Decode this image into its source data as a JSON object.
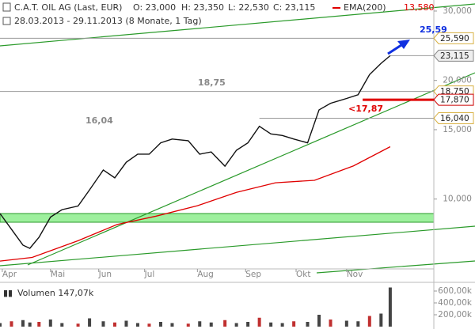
{
  "chart_data": {
    "type": "line",
    "title": "C.A.T. OIL AG (Last, EUR)",
    "ohlc": [
      "O: 23,000",
      "H: 23,350",
      "L: 22,530",
      "C: 23,115"
    ],
    "subtitle": "28.03.2013 - 29.11.2013 (8 Monate, 1 Tag)",
    "log": true,
    "xlim": [
      0,
      189
    ],
    "xticks": [
      {
        "value": 1,
        "label": "Apr"
      },
      {
        "value": 22,
        "label": "Mai"
      },
      {
        "value": 43,
        "label": "Jun"
      },
      {
        "value": 63,
        "label": "Jul"
      },
      {
        "value": 86,
        "label": "Aug"
      },
      {
        "value": 107,
        "label": "Sep"
      },
      {
        "value": 129,
        "label": "Okt"
      },
      {
        "value": 151,
        "label": "Nov"
      }
    ],
    "ylim": [
      6.65,
      32
    ],
    "yticks": [
      {
        "value": 10,
        "label": "10,000"
      },
      {
        "value": 15,
        "label": "15,000"
      },
      {
        "value": 20,
        "label": "20,000"
      },
      {
        "value": 30,
        "label": "30,000"
      }
    ],
    "series": [
      {
        "color": "#111111",
        "x": [
          0,
          5,
          10,
          13,
          17,
          22,
          27,
          34,
          39,
          45,
          50,
          55,
          60,
          65,
          70,
          75,
          82,
          87,
          92,
          98,
          103,
          108,
          113,
          118,
          123,
          128,
          134,
          139,
          144,
          151,
          156,
          161,
          166,
          170
        ],
        "values": [
          9.19,
          8.38,
          7.64,
          7.5,
          8.0,
          9.0,
          9.4,
          9.6,
          10.55,
          11.85,
          11.32,
          12.4,
          13.0,
          13.0,
          13.89,
          14.2,
          14.06,
          13.0,
          13.17,
          12.12,
          13.3,
          13.89,
          15.3,
          14.63,
          14.5,
          14.2,
          13.89,
          16.84,
          17.5,
          18.0,
          18.4,
          20.7,
          22.1,
          23.115
        ]
      },
      {
        "name": "EMA(200)",
        "color": "#e00000",
        "value_label": "13,580",
        "x": [
          0,
          14,
          34,
          51,
          68,
          86,
          103,
          120,
          137,
          154,
          170
        ],
        "values": [
          6.96,
          7.11,
          7.84,
          8.62,
          9.05,
          9.62,
          10.4,
          11.0,
          11.16,
          12.14,
          13.58
        ]
      }
    ],
    "levels": [
      {
        "value": 25.59,
        "label": "25,590",
        "left_label": "25,59",
        "color": "#1030e0",
        "x_from": 0
      },
      {
        "value": 23.115,
        "label": "23,115",
        "x_from": 170
      },
      {
        "value": 18.75,
        "label": "18,750",
        "left_label": "18,75",
        "color": "#888888",
        "x_from": 0
      },
      {
        "value": 17.87,
        "label": "17,870",
        "left_label": "<17,87",
        "color": "#e00000",
        "x_from": 158
      },
      {
        "value": 16.04,
        "label": "16,040",
        "left_label": "16,04",
        "color": "#888888",
        "x_from": 113
      }
    ],
    "volume": {
      "label": "Volumen 147,07k",
      "ylim": [
        0,
        680
      ],
      "yticks": [
        {
          "value": 200,
          "label": "200,00k"
        },
        {
          "value": 400,
          "label": "400,00k"
        },
        {
          "value": 600,
          "label": "600,00k"
        }
      ],
      "values": [
        60,
        90,
        110,
        70,
        80,
        120,
        60,
        50,
        140,
        90,
        70,
        100,
        60,
        50,
        80,
        60,
        50,
        90,
        70,
        110,
        60,
        80,
        150,
        70,
        60,
        90,
        80,
        200,
        120,
        100,
        90,
        180,
        220,
        660
      ]
    }
  }
}
